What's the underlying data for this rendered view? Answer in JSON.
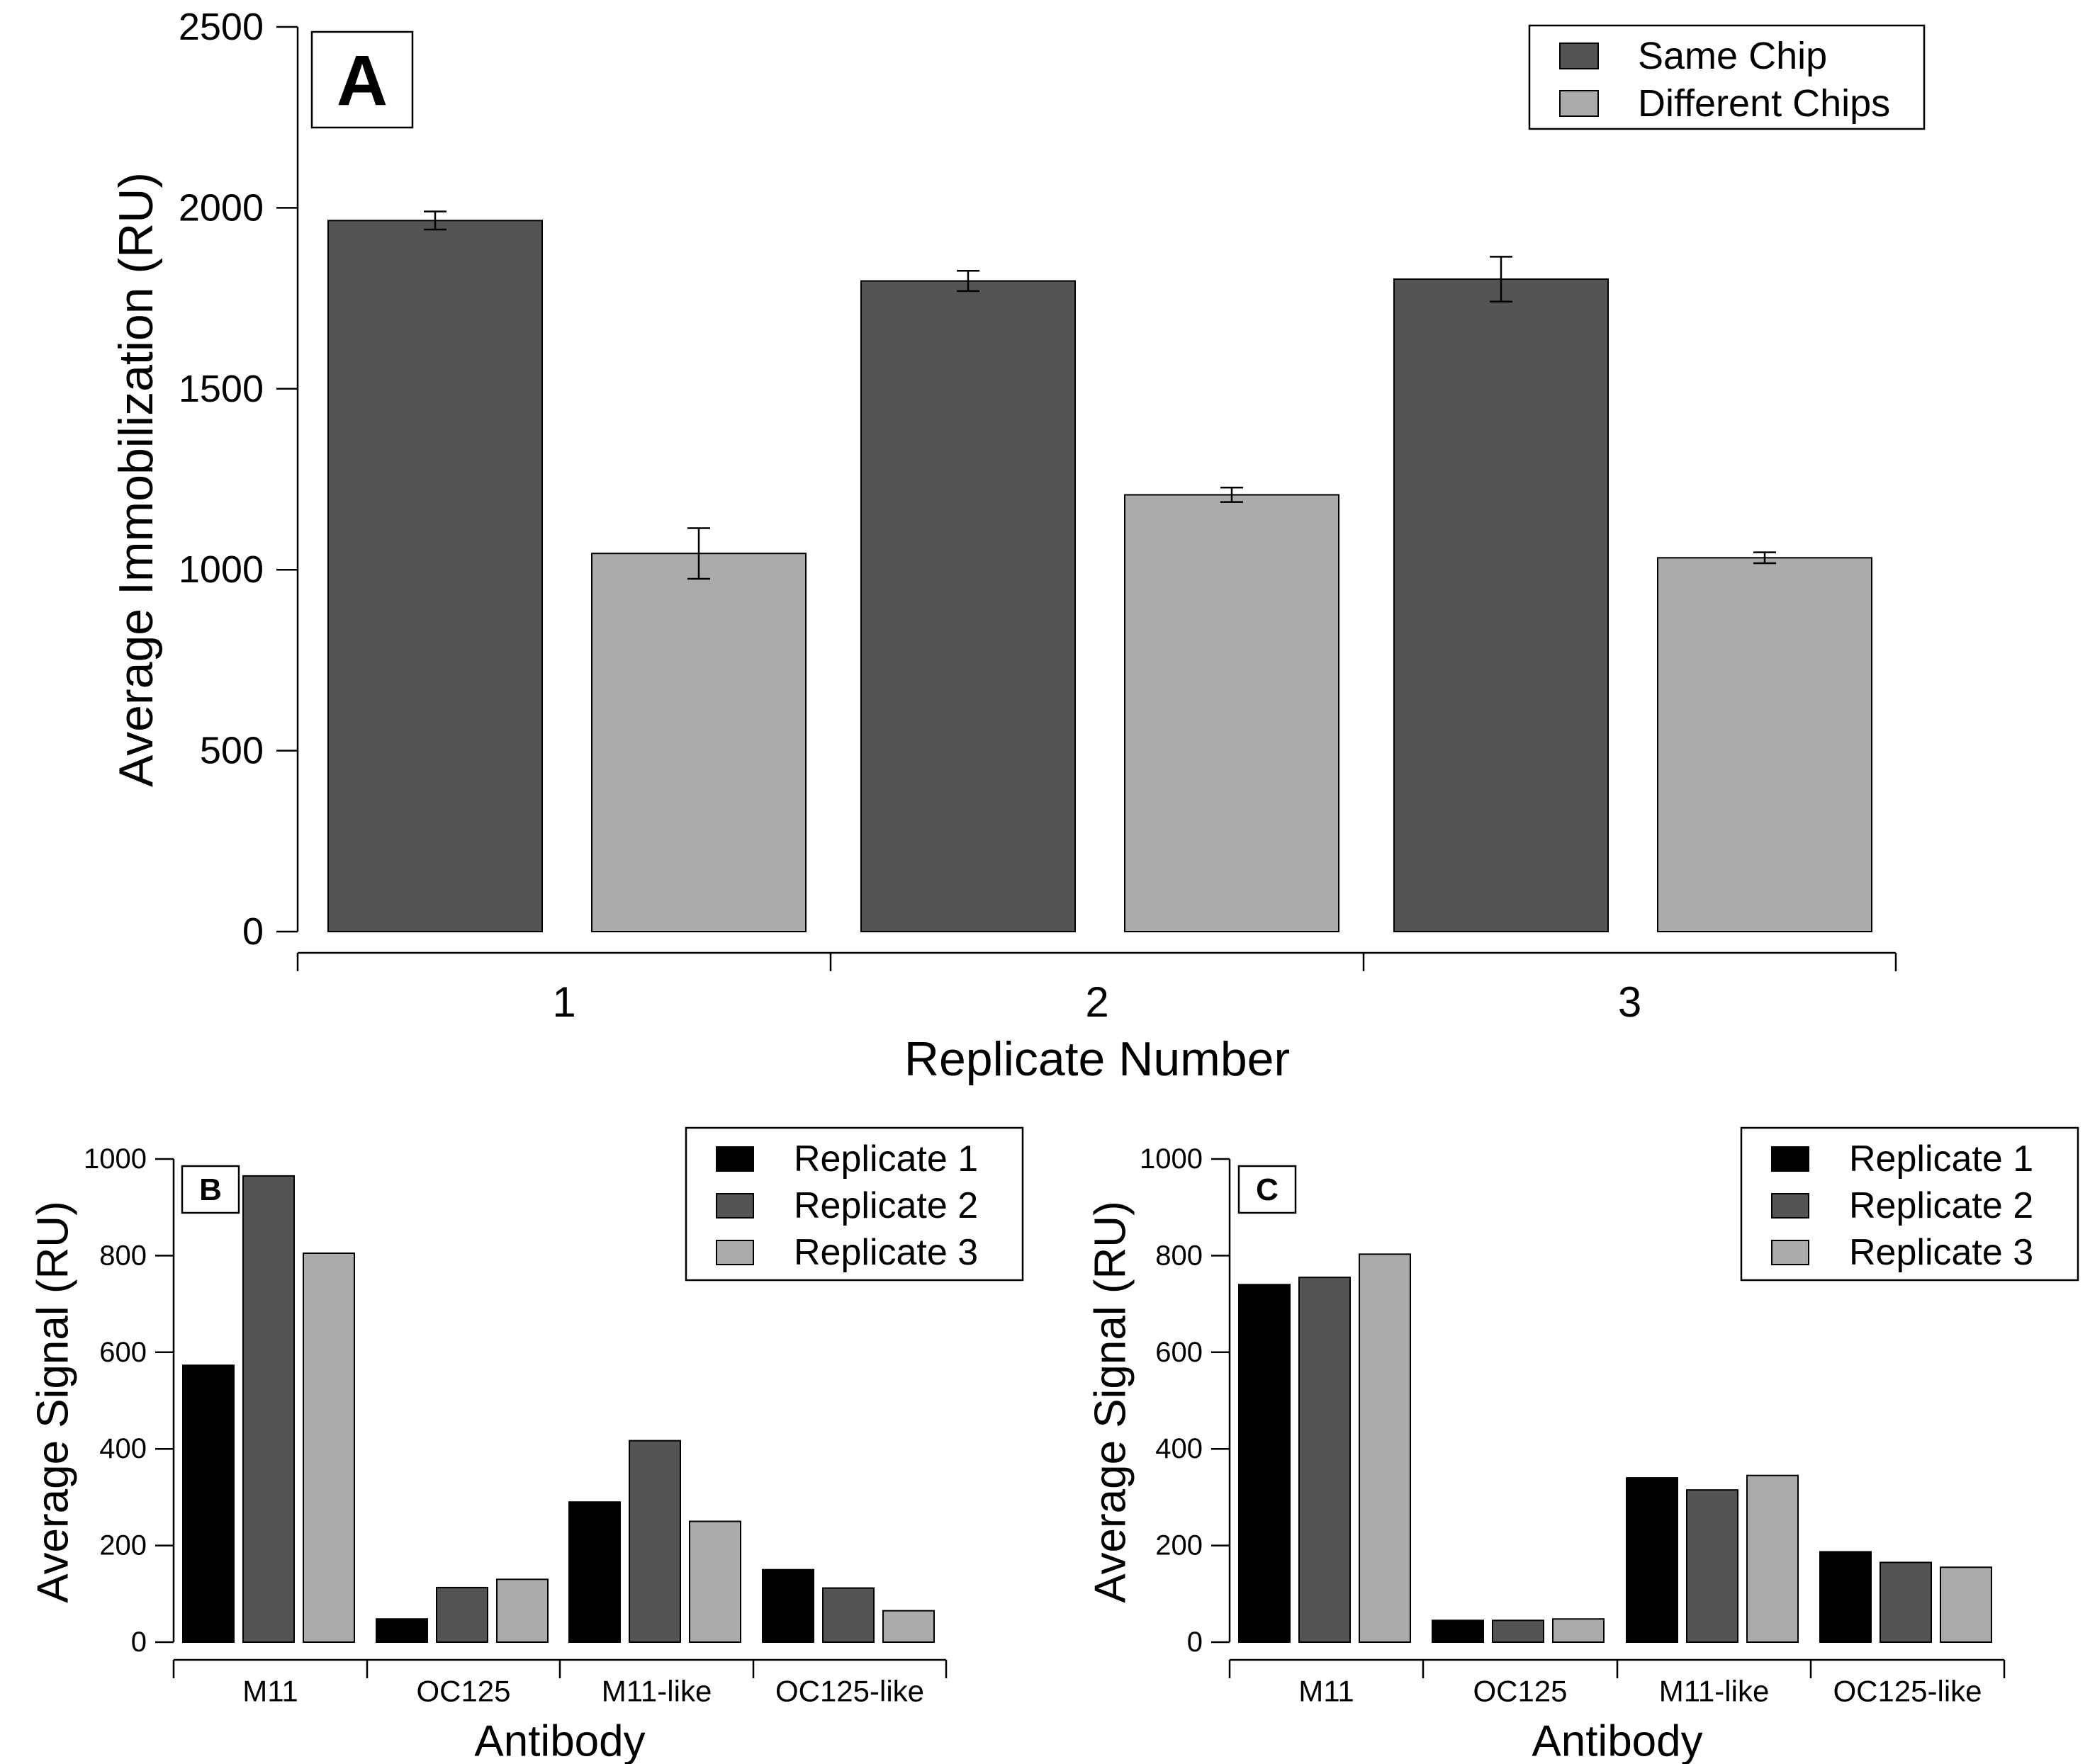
{
  "colors": {
    "black": "#000000",
    "dark_gray": "#545454",
    "light_gray": "#ababab"
  },
  "chart_data": [
    {
      "panel": "A",
      "type": "bar",
      "ylabel": "Average Immobilization (RU)",
      "xlabel": "Replicate Number",
      "categories": [
        "1",
        "2",
        "3"
      ],
      "ylim": [
        0,
        2500
      ],
      "yticks": [
        "0",
        "500",
        "1000",
        "1500",
        "2000",
        "2500"
      ],
      "legend_position": "top-right",
      "series": [
        {
          "name": "Same Chip",
          "color": "#545454",
          "values": [
            1965,
            1798,
            1803
          ],
          "errors": [
            25,
            28,
            62
          ]
        },
        {
          "name": "Different Chips",
          "color": "#ababab",
          "values": [
            1045,
            1207,
            1033
          ],
          "errors": [
            70,
            20,
            15
          ]
        }
      ]
    },
    {
      "panel": "B",
      "type": "bar",
      "ylabel": "Average Signal (RU)",
      "xlabel": "Antibody",
      "categories": [
        "M11",
        "OC125",
        "M11-like",
        "OC125-like"
      ],
      "ylim": [
        0,
        1000
      ],
      "yticks": [
        "0",
        "200",
        "400",
        "600",
        "800",
        "1000"
      ],
      "legend_position": "top-right",
      "series": [
        {
          "name": "Replicate 1",
          "color": "#000000",
          "values": [
            573,
            48,
            290,
            150
          ]
        },
        {
          "name": "Replicate 2",
          "color": "#545454",
          "values": [
            965,
            113,
            417,
            112
          ]
        },
        {
          "name": "Replicate 3",
          "color": "#ababab",
          "values": [
            805,
            130,
            250,
            65
          ]
        }
      ]
    },
    {
      "panel": "C",
      "type": "bar",
      "ylabel": "Average Signal (RU)",
      "xlabel": "Antibody",
      "categories": [
        "M11",
        "OC125",
        "M11-like",
        "OC125-like"
      ],
      "ylim": [
        0,
        1000
      ],
      "yticks": [
        "0",
        "200",
        "400",
        "600",
        "800",
        "1000"
      ],
      "legend_position": "top-right",
      "series": [
        {
          "name": "Replicate 1",
          "color": "#000000",
          "values": [
            740,
            45,
            340,
            187
          ]
        },
        {
          "name": "Replicate 2",
          "color": "#545454",
          "values": [
            755,
            45,
            315,
            165
          ]
        },
        {
          "name": "Replicate 3",
          "color": "#ababab",
          "values": [
            803,
            48,
            345,
            155
          ]
        }
      ]
    }
  ]
}
